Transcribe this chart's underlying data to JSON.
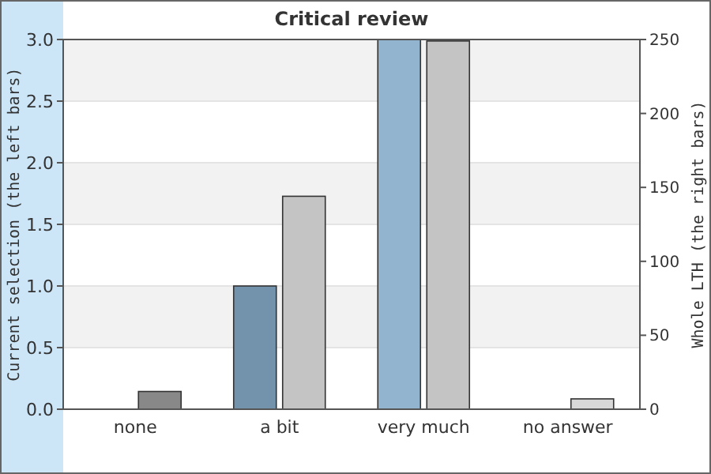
{
  "chart_data": {
    "type": "bar",
    "title": "Critical review",
    "ylabel": "Current selection (the left bars)",
    "y2label": "Whole LTH (the right bars)",
    "categories": [
      "none",
      "a bit",
      "very much",
      "no answer"
    ],
    "series": [
      {
        "colors": [
          "#7393ad",
          "#7393ad",
          "#93b4cf",
          "#93b4cf"
        ],
        "values": [
          0,
          1,
          3,
          0
        ]
      },
      {
        "colors": [
          "#888888",
          "#c4c4c4",
          "#c4c4c4",
          "#d8d8d8"
        ],
        "values": [
          12,
          144,
          249,
          7
        ],
        "axis": "y2"
      }
    ],
    "ylim": [
      0,
      3
    ],
    "yticks": [
      {
        "value": 0,
        "label": "0.0"
      },
      {
        "value": 0.5,
        "label": "0.5"
      },
      {
        "value": 1,
        "label": "1.0"
      },
      {
        "value": 1.5,
        "label": "1.5"
      },
      {
        "value": 2,
        "label": "2.0"
      },
      {
        "value": 2.5,
        "label": "2.5"
      },
      {
        "value": 3,
        "label": "3.0"
      }
    ],
    "y2lim": [
      0,
      250
    ],
    "y2ticks": [
      0,
      50,
      100,
      150,
      200,
      250
    ],
    "grid": "y"
  }
}
